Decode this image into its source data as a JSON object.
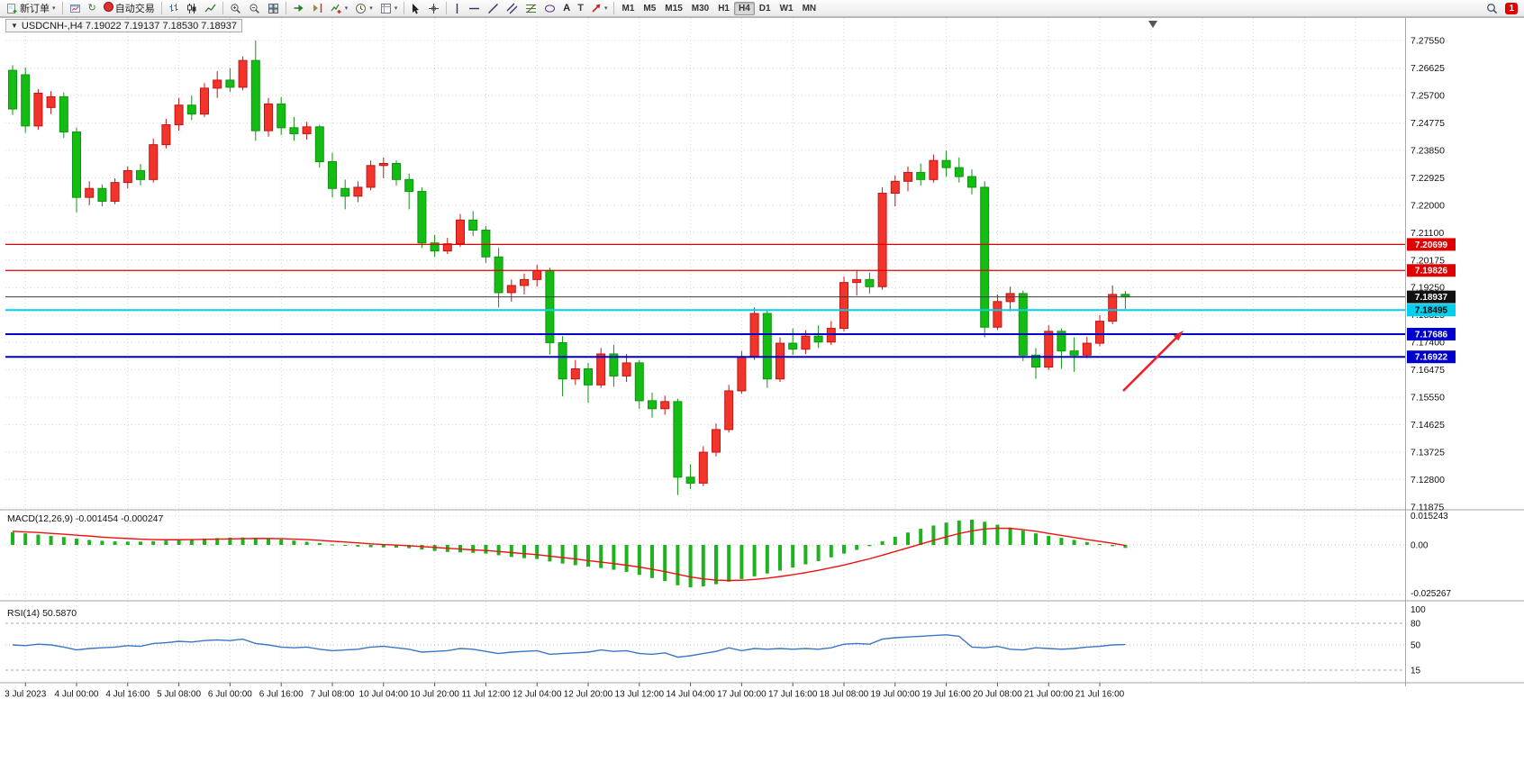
{
  "toolbar": {
    "buttons": [
      {
        "name": "new-order",
        "label": "新订单",
        "icon": "new-order-icon",
        "dropdown": true
      },
      {
        "sep": true
      },
      {
        "name": "charts",
        "icon": "charts-icon"
      },
      {
        "name": "refresh",
        "icon": "refresh-icon"
      },
      {
        "name": "autotrading",
        "label": "自动交易",
        "icon": "autotrading-icon"
      },
      {
        "sep": true
      },
      {
        "name": "bar-chart",
        "icon": "bar-chart-icon"
      },
      {
        "name": "candlestick-chart",
        "icon": "candlestick-icon"
      },
      {
        "name": "line-chart",
        "icon": "line-chart-icon"
      },
      {
        "sep": true
      },
      {
        "name": "zoom-in",
        "icon": "zoom-in-icon"
      },
      {
        "name": "zoom-out",
        "icon": "zoom-out-icon"
      },
      {
        "name": "tile-windows",
        "icon": "tile-windows-icon"
      },
      {
        "sep": true
      },
      {
        "name": "auto-scroll",
        "icon": "auto-scroll-icon"
      },
      {
        "name": "chart-shift",
        "icon": "chart-shift-icon"
      },
      {
        "name": "indicators",
        "icon": "indicators-icon",
        "dropdown": true
      },
      {
        "name": "periods",
        "icon": "clock-icon",
        "dropdown": true
      },
      {
        "name": "templates",
        "icon": "template-icon",
        "dropdown": true
      },
      {
        "sep": true
      },
      {
        "name": "cursor",
        "icon": "cursor-icon"
      },
      {
        "name": "crosshair",
        "icon": "crosshair-icon"
      },
      {
        "sep": true
      },
      {
        "name": "vertical-line",
        "icon": "vline-icon"
      },
      {
        "name": "horizontal-line",
        "icon": "hline-icon"
      },
      {
        "name": "trendline",
        "icon": "trendline-icon"
      },
      {
        "name": "equidistant-channel",
        "icon": "channel-icon"
      },
      {
        "name": "fibonacci",
        "icon": "fibonacci-icon"
      },
      {
        "name": "shapes",
        "icon": "shapes-icon"
      },
      {
        "name": "text",
        "icon": "text-icon"
      },
      {
        "name": "text-label",
        "icon": "label-icon"
      },
      {
        "name": "arrows",
        "icon": "arrow-tool-icon",
        "dropdown": true
      },
      {
        "sep": true
      }
    ],
    "timeframes": {
      "items": [
        "M1",
        "M5",
        "M15",
        "M30",
        "H1",
        "H4",
        "D1",
        "W1",
        "MN"
      ],
      "active": "H4"
    },
    "notification_count": "1"
  },
  "chart": {
    "collapse_icon": "▼",
    "caption": "USDCNH-,H4 7.19022 7.19137 7.18530 7.18937"
  },
  "chart_data": {
    "type": "candlestick",
    "symbol": "USDCNH-",
    "timeframe": "H4",
    "current_ohlc": {
      "open": 7.19022,
      "high": 7.19137,
      "low": 7.1853,
      "close": 7.18937
    },
    "bull_color": "#f3342a",
    "bear_color": "#14bd14",
    "price_axis_labels": [
      "7.27550",
      "7.26625",
      "7.25700",
      "7.24775",
      "7.23850",
      "7.22925",
      "7.22000",
      "7.21100",
      "7.20175",
      "7.19250",
      "7.18325",
      "7.17400",
      "7.16475",
      "7.15550",
      "7.14625",
      "7.13725",
      "7.12800",
      "7.11875"
    ],
    "time_axis_labels": [
      "3 Jul 2023",
      "4 Jul 00:00",
      "4 Jul 16:00",
      "5 Jul 08:00",
      "6 Jul 00:00",
      "6 Jul 16:00",
      "7 Jul 08:00",
      "10 Jul 04:00",
      "10 Jul 20:00",
      "11 Jul 12:00",
      "12 Jul 04:00",
      "12 Jul 20:00",
      "13 Jul 12:00",
      "14 Jul 04:00",
      "17 Jul 00:00",
      "17 Jul 16:00",
      "18 Jul 08:00",
      "19 Jul 00:00",
      "19 Jul 16:00",
      "20 Jul 08:00",
      "21 Jul 00:00",
      "21 Jul 16:00"
    ],
    "candles_ohlc": [
      [
        7.2655,
        7.2672,
        7.2505,
        7.2525
      ],
      [
        7.264,
        7.2665,
        7.2445,
        7.2468
      ],
      [
        7.2468,
        7.2592,
        7.2455,
        7.2578
      ],
      [
        7.253,
        7.2585,
        7.2508,
        7.2566
      ],
      [
        7.2566,
        7.258,
        7.2428,
        7.2448
      ],
      [
        7.2448,
        7.2462,
        7.2178,
        7.2228
      ],
      [
        7.2228,
        7.2282,
        7.2202,
        7.2258
      ],
      [
        7.2258,
        7.2272,
        7.2198,
        7.2215
      ],
      [
        7.2215,
        7.2292,
        7.2205,
        7.2278
      ],
      [
        7.2278,
        7.2332,
        7.2258,
        7.2318
      ],
      [
        7.2318,
        7.234,
        7.2268,
        7.2288
      ],
      [
        7.2288,
        7.2425,
        7.2278,
        7.2405
      ],
      [
        7.2405,
        7.2492,
        7.2392,
        7.2472
      ],
      [
        7.2472,
        7.2562,
        7.2452,
        7.2538
      ],
      [
        7.2538,
        7.257,
        7.2488,
        7.2508
      ],
      [
        7.2508,
        7.2612,
        7.2498,
        7.2595
      ],
      [
        7.2595,
        7.2652,
        7.2562,
        7.2622
      ],
      [
        7.2622,
        7.2662,
        7.2582,
        7.2598
      ],
      [
        7.2598,
        7.2702,
        7.2588,
        7.2688
      ],
      [
        7.2688,
        7.2755,
        7.2418,
        7.2452
      ],
      [
        7.2452,
        7.2562,
        7.2432,
        7.2542
      ],
      [
        7.2542,
        7.2565,
        7.2438,
        7.2462
      ],
      [
        7.2462,
        7.2498,
        7.2418,
        7.2442
      ],
      [
        7.2442,
        7.2482,
        7.2422,
        7.2465
      ],
      [
        7.2465,
        7.2472,
        7.2328,
        7.2348
      ],
      [
        7.2348,
        7.2378,
        7.2228,
        7.2258
      ],
      [
        7.2258,
        7.2288,
        7.2188,
        7.2232
      ],
      [
        7.2232,
        7.2282,
        7.2212,
        7.2262
      ],
      [
        7.2262,
        7.2352,
        7.2252,
        7.2335
      ],
      [
        7.2335,
        7.2362,
        7.2292,
        7.2342
      ],
      [
        7.2342,
        7.2352,
        7.2268,
        7.2288
      ],
      [
        7.2288,
        7.2308,
        7.2188,
        7.2248
      ],
      [
        7.2248,
        7.2262,
        7.2058,
        7.2075
      ],
      [
        7.2075,
        7.2102,
        7.2028,
        7.2048
      ],
      [
        7.2048,
        7.2092,
        7.2038,
        7.2072
      ],
      [
        7.2072,
        7.2172,
        7.2062,
        7.2152
      ],
      [
        7.2152,
        7.2182,
        7.2098,
        7.2118
      ],
      [
        7.2118,
        7.2132,
        7.2008,
        7.2028
      ],
      [
        7.2028,
        7.2058,
        7.1858,
        7.1908
      ],
      [
        7.1908,
        7.1952,
        7.1878,
        7.1932
      ],
      [
        7.1932,
        7.1972,
        7.1902,
        7.1952
      ],
      [
        7.1952,
        7.2002,
        7.1928,
        7.1982
      ],
      [
        7.1982,
        7.1992,
        7.17,
        7.174
      ],
      [
        7.174,
        7.1762,
        7.156,
        7.1618
      ],
      [
        7.1618,
        7.1682,
        7.1598,
        7.1652
      ],
      [
        7.1652,
        7.1672,
        7.1538,
        7.1598
      ],
      [
        7.1598,
        7.1722,
        7.1588,
        7.1702
      ],
      [
        7.1702,
        7.1732,
        7.1592,
        7.1628
      ],
      [
        7.1628,
        7.1702,
        7.1608,
        7.1672
      ],
      [
        7.1672,
        7.1682,
        7.1518,
        7.1545
      ],
      [
        7.1545,
        7.1572,
        7.1488,
        7.1518
      ],
      [
        7.1518,
        7.1562,
        7.1498,
        7.1542
      ],
      [
        7.1542,
        7.1552,
        7.1228,
        7.1288
      ],
      [
        7.1288,
        7.1332,
        7.1248,
        7.1268
      ],
      [
        7.1268,
        7.1392,
        7.1258,
        7.1372
      ],
      [
        7.1372,
        7.1468,
        7.1358,
        7.1448
      ],
      [
        7.1448,
        7.1598,
        7.1438,
        7.1578
      ],
      [
        7.1578,
        7.1712,
        7.1568,
        7.1692
      ],
      [
        7.1692,
        7.1858,
        7.1682,
        7.1838
      ],
      [
        7.1838,
        7.1848,
        7.1588,
        7.1618
      ],
      [
        7.1618,
        7.1758,
        7.1608,
        7.1738
      ],
      [
        7.1738,
        7.1788,
        7.1698,
        7.1718
      ],
      [
        7.1718,
        7.1782,
        7.1702,
        7.1762
      ],
      [
        7.1762,
        7.1798,
        7.1722,
        7.1742
      ],
      [
        7.1742,
        7.1812,
        7.1732,
        7.1788
      ],
      [
        7.1788,
        7.1962,
        7.1778,
        7.1942
      ],
      [
        7.1942,
        7.1985,
        7.1898,
        7.1952
      ],
      [
        7.1952,
        7.1975,
        7.1905,
        7.1928
      ],
      [
        7.1928,
        7.2262,
        7.1918,
        7.2242
      ],
      [
        7.2242,
        7.2302,
        7.2198,
        7.2282
      ],
      [
        7.2282,
        7.2332,
        7.2248,
        7.2312
      ],
      [
        7.2312,
        7.2342,
        7.2268,
        7.2288
      ],
      [
        7.2288,
        7.2372,
        7.2278,
        7.2352
      ],
      [
        7.2352,
        7.2385,
        7.2298,
        7.2328
      ],
      [
        7.2328,
        7.2362,
        7.2278,
        7.2298
      ],
      [
        7.2298,
        7.2322,
        7.2238,
        7.2262
      ],
      [
        7.2262,
        7.2282,
        7.1758,
        7.1792
      ],
      [
        7.1792,
        7.1902,
        7.1782,
        7.1878
      ],
      [
        7.1878,
        7.1928,
        7.1845,
        7.1905
      ],
      [
        7.1905,
        7.1915,
        7.1678,
        7.1698
      ],
      [
        7.1698,
        7.1722,
        7.1618,
        7.1658
      ],
      [
        7.1658,
        7.1798,
        7.1648,
        7.1778
      ],
      [
        7.1778,
        7.1788,
        7.1652,
        7.1712
      ],
      [
        7.1712,
        7.1758,
        7.1642,
        7.1698
      ],
      [
        7.1698,
        7.176,
        7.1688,
        7.1738
      ],
      [
        7.1738,
        7.1832,
        7.1728,
        7.1812
      ],
      [
        7.1812,
        7.1932,
        7.1802,
        7.1902
      ],
      [
        7.19022,
        7.19137,
        7.1853,
        7.18937
      ]
    ],
    "hlines": [
      {
        "price": "7.20699",
        "value": 7.20699,
        "color": "#e00000",
        "tag_bg": "#e00000",
        "tag_fg": "#ffffff",
        "width": 1.2
      },
      {
        "price": "7.19826",
        "value": 7.19826,
        "color": "#e00000",
        "tag_bg": "#e00000",
        "tag_fg": "#ffffff",
        "width": 1.2
      },
      {
        "price": "7.18937",
        "value": 7.18937,
        "color": "#3c3c3c",
        "tag_bg": "#111111",
        "tag_fg": "#ffffff",
        "width": 1
      },
      {
        "price": "7.18495",
        "value": 7.18495,
        "color": "#00cfee",
        "tag_bg": "#00cfee",
        "tag_fg": "#000000",
        "width": 2
      },
      {
        "price": "7.17686",
        "value": 7.17686,
        "color": "#0000cc",
        "tag_bg": "#0000cc",
        "tag_fg": "#ffffff",
        "width": 2
      },
      {
        "price": "7.16922",
        "value": 7.16922,
        "color": "#0000cc",
        "tag_bg": "#0000cc",
        "tag_fg": "#ffffff",
        "width": 2
      }
    ],
    "arrow_annotation": {
      "present": true,
      "color": "#e8242c",
      "direction": "up-right"
    },
    "macd": {
      "label": "MACD(12,26,9) -0.001454 -0.000247",
      "value": -0.001454,
      "signal_value": -0.000247,
      "axis_labels": [
        "0.015243",
        "0.00",
        "-0.025267"
      ],
      "unit_scale": 0.001,
      "hist_color": "#1db31d",
      "signal_color": "#ee1111",
      "histogram": [
        6.2,
        5.6,
        5.0,
        4.4,
        3.8,
        3.0,
        2.4,
        2.0,
        1.7,
        1.6,
        1.6,
        1.8,
        2.1,
        2.5,
        2.8,
        3.1,
        3.3,
        3.5,
        3.6,
        3.5,
        3.2,
        2.7,
        2.1,
        1.5,
        0.9,
        0.2,
        -0.4,
        -0.8,
        -1.1,
        -1.2,
        -1.3,
        -1.6,
        -2.2,
        -2.9,
        -3.4,
        -3.6,
        -3.8,
        -4.2,
        -5.0,
        -5.8,
        -6.4,
        -6.8,
        -8.0,
        -9.0,
        -9.8,
        -10.5,
        -11.2,
        -12.0,
        -13.0,
        -14.5,
        -16.0,
        -17.5,
        -19.5,
        -20.5,
        -20.0,
        -19.0,
        -17.8,
        -16.5,
        -15.2,
        -13.8,
        -12.4,
        -11.0,
        -9.4,
        -7.8,
        -6.0,
        -4.2,
        -2.4,
        -0.6,
        1.8,
        4.0,
        6.0,
        7.8,
        9.4,
        10.8,
        11.8,
        12.2,
        11.2,
        9.8,
        8.4,
        7.0,
        5.6,
        4.4,
        3.4,
        2.4,
        1.4,
        0.4,
        -0.6,
        -1.454
      ],
      "signal": [
        6.6,
        6.3,
        6.0,
        5.6,
        5.2,
        4.7,
        4.3,
        3.8,
        3.4,
        3.1,
        2.8,
        2.6,
        2.5,
        2.5,
        2.6,
        2.7,
        2.8,
        2.9,
        3.0,
        3.1,
        3.1,
        3.0,
        2.8,
        2.6,
        2.2,
        1.8,
        1.4,
        1.0,
        0.5,
        0.2,
        -0.1,
        -0.4,
        -0.8,
        -1.2,
        -1.6,
        -2.0,
        -2.4,
        -2.7,
        -3.2,
        -3.7,
        -4.2,
        -4.7,
        -5.4,
        -6.1,
        -6.8,
        -7.6,
        -8.3,
        -9.0,
        -9.8,
        -10.7,
        -11.8,
        -12.9,
        -14.2,
        -15.5,
        -16.4,
        -17.0,
        -17.2,
        -17.1,
        -16.7,
        -16.1,
        -15.3,
        -14.4,
        -13.4,
        -12.3,
        -11.0,
        -9.7,
        -8.2,
        -6.7,
        -5.0,
        -3.2,
        -1.4,
        0.4,
        2.2,
        3.9,
        5.5,
        6.8,
        7.7,
        8.1,
        8.0,
        7.4,
        6.6,
        5.6,
        4.6,
        3.6,
        2.6,
        1.7,
        0.8,
        -0.247
      ]
    },
    "rsi": {
      "label": "RSI(14) 50.5870",
      "value": 50.587,
      "axis_labels": [
        "100",
        "80",
        "50",
        "15"
      ],
      "levels": [
        80,
        50,
        15
      ],
      "line_color": "#3b76c4",
      "values": [
        50,
        49,
        51,
        50,
        47,
        43,
        45,
        46,
        47,
        49,
        48,
        52,
        53,
        55,
        54,
        56,
        57,
        56,
        58,
        52,
        50,
        47,
        46,
        47,
        44,
        42,
        43,
        44,
        47,
        48,
        46,
        44,
        40,
        41,
        42,
        45,
        44,
        41,
        38,
        40,
        41,
        42,
        37,
        38,
        39,
        40,
        43,
        41,
        42,
        38,
        37,
        39,
        33,
        35,
        38,
        41,
        46,
        42,
        45,
        44,
        45,
        44,
        45,
        44,
        46,
        51,
        52,
        51,
        58,
        60,
        61,
        62,
        63,
        64,
        62,
        47,
        46,
        48,
        44,
        43,
        46,
        45,
        44,
        45,
        47,
        48,
        50,
        50.587
      ]
    }
  }
}
